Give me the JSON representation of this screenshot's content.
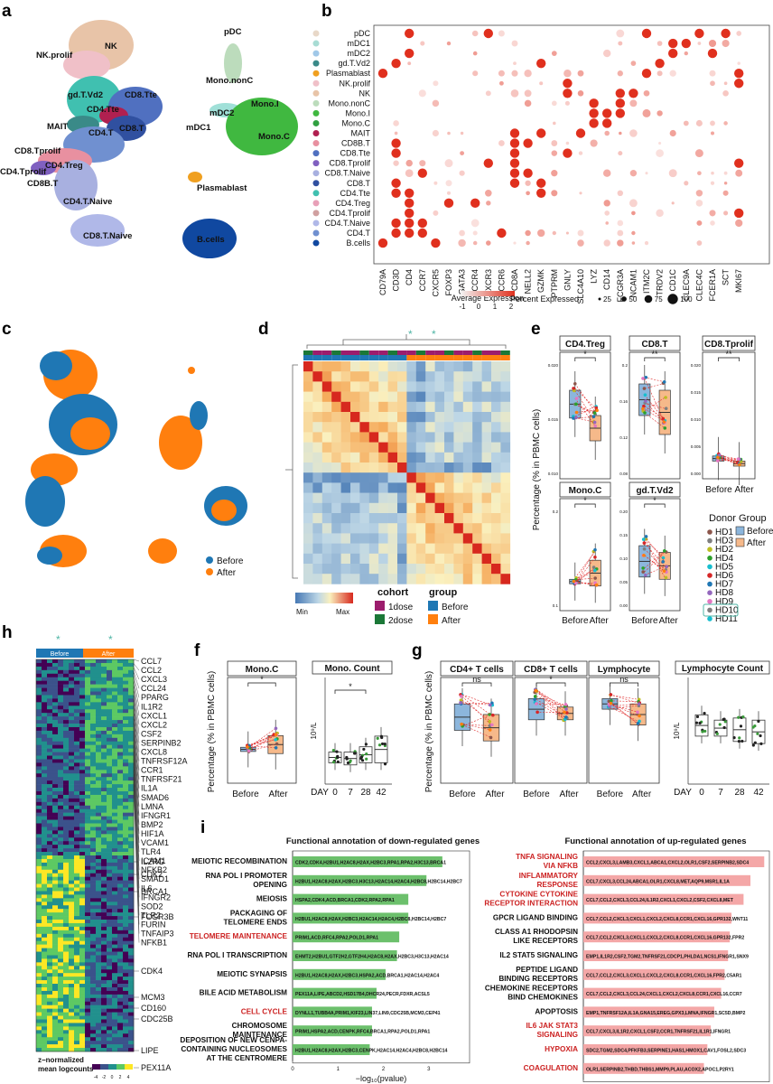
{
  "panels": {
    "a": {
      "label": "a",
      "clusters": [
        "NK",
        "NK.prolif",
        "gd.T.Vd2",
        "CD4.Tte",
        "CD8.Tte",
        "MAIT",
        "CD4.T",
        "CD8.T",
        "CD8.Tprolif",
        "CD4.Tprolif",
        "CD4.Treg",
        "CD8B.T",
        "CD4.T.Naive",
        "CD8.T.Naive",
        "pDC",
        "Mono.nonC",
        "mDC2",
        "mDC1",
        "Mono.I",
        "Mono.C",
        "Plasmablast",
        "B.cells"
      ]
    },
    "b": {
      "label": "b",
      "rows": [
        "pDC",
        "mDC1",
        "mDC2",
        "gd.T.Vd2",
        "Plasmablast",
        "NK.prolif",
        "NK",
        "Mono.nonC",
        "Mono.I",
        "Mono.C",
        "MAIT",
        "CD8B.T",
        "CD8.Tte",
        "CD8.Tprolif",
        "CD8.T.Naive",
        "CD8.T",
        "CD4.Tte",
        "CD4.Treg",
        "CD4.Tprolif",
        "CD4.T.Naive",
        "CD4.T",
        "B.cells"
      ],
      "genes": [
        "CD79A",
        "CD3D",
        "CD4",
        "CCR7",
        "CXCR5",
        "FOXP3",
        "GATA3",
        "CCR4",
        "CXCR3",
        "CCR6",
        "CD8A",
        "NELL2",
        "GZMK",
        "PTPRM",
        "GNLY",
        "SLC4A10",
        "LYZ",
        "CD14",
        "FCGR3A",
        "NCAM1",
        "ITM2C",
        "TRDV2",
        "CD1C",
        "CLEC9A",
        "CLEC4C",
        "FCER1A",
        "SCT",
        "MKI67"
      ],
      "legend_expr_title": "Average Expression",
      "legend_expr_ticks": [
        "-1",
        "0",
        "1",
        "2"
      ],
      "legend_pct_title": "Percent Expressed",
      "legend_pct_ticks": [
        "25",
        "50",
        "75",
        "100"
      ],
      "colors": {
        "low": "#f0f0f0",
        "high": "#e0301e"
      }
    },
    "c": {
      "label": "c",
      "legend": [
        "Before",
        "After"
      ],
      "colors": {
        "before": "#1f77b4",
        "after": "#ff7f0e"
      }
    },
    "d": {
      "label": "d",
      "scale_min": "Min",
      "scale_max": "Max",
      "cohort_title": "cohort",
      "cohort_items": [
        "1dose",
        "2dose"
      ],
      "group_title": "group",
      "group_items": [
        "Before",
        "After"
      ]
    },
    "e": {
      "label": "e",
      "ylabel": "Percentage (% in PBMC cells)",
      "xlabels": [
        "Before",
        "After"
      ],
      "boxes": [
        {
          "title": "CD4.Treg",
          "sig": "*",
          "ticks": [
            "0.020",
            "0.015",
            "0.010"
          ]
        },
        {
          "title": "CD8.T",
          "sig": "**",
          "ticks": [
            "0.2",
            "0.16",
            "0.12",
            "0.08"
          ]
        },
        {
          "title": "CD8.Tprolif",
          "sig": "**",
          "ticks": [
            "0.020",
            "0.015",
            "0.010",
            "0.005",
            "0.000"
          ]
        },
        {
          "title": "Mono.C",
          "sig": "*",
          "ticks": [
            "0.2",
            "0.1"
          ]
        },
        {
          "title": "gd.T.Vd2",
          "sig": "*",
          "ticks": [
            "0.20",
            "0.15",
            "0.10",
            "0.05",
            "0.00"
          ]
        }
      ],
      "donor_title": "Donor",
      "donors": [
        "HD1",
        "HD3",
        "HD2",
        "HD4",
        "HD5",
        "HD6",
        "HD7",
        "HD8",
        "HD9",
        "HD10",
        "HD11"
      ],
      "donor_colors": [
        "#8c564b",
        "#7f7f7f",
        "#bcbd22",
        "#2ca02c",
        "#17becf",
        "#d62728",
        "#1f77b4",
        "#9467bd",
        "#e377c2",
        "#7f7f7f",
        "#17becf"
      ],
      "group_title": "Group",
      "groups": [
        "Before",
        "After"
      ]
    },
    "h": {
      "label": "h",
      "top_labels": [
        "Before",
        "After"
      ],
      "genes_top": [
        "CCL7",
        "CCL2",
        "CXCL3",
        "CCL24",
        "PPARG",
        "IL1R2",
        "CXCL1",
        "CXCL2",
        "CSF2",
        "SERPINB2",
        "CXCL8",
        "TNFRSF12A",
        "CCR1",
        "TNFRSF21",
        "IL1A",
        "SMAD6",
        "LMNA",
        "IFNGR1",
        "BMP2",
        "HIF1A",
        "VCAM1",
        "TLR4",
        "ICAM1",
        "NFKB2",
        "SMAD1",
        "IL6",
        "IFNGR2",
        "SOD2",
        "TLR2",
        "FURIN",
        "TNFAIP3",
        "NFKB1"
      ],
      "genes_bottom": [
        "IL2RG",
        "CDK2",
        "BRCA1",
        "FCGR3B",
        "CDK4",
        "MCM3",
        "CD160",
        "CDC25B",
        "LIPE",
        "PEX11A"
      ],
      "legend_title_1": "z−normalized",
      "legend_title_2": "mean logcounts",
      "legend_ticks": [
        "-4",
        "-2",
        "0",
        "2",
        "4"
      ]
    },
    "f": {
      "label": "f",
      "ylabel": "Percentage (% in PBMC cells)",
      "box_title": "Mono.C",
      "box_sig": "*",
      "box_x": [
        "Before",
        "After"
      ],
      "count_title": "Mono. Count",
      "count_sig": "*",
      "count_ylabel": "10⁹/L",
      "count_x": [
        "DAY",
        "0",
        "7",
        "28",
        "42"
      ]
    },
    "g": {
      "label": "g",
      "ylabel": "Percentage (% in PBMC cells)",
      "boxes": [
        {
          "title": "CD4+ T cells",
          "sig": "ns"
        },
        {
          "title": "CD8+ T cells",
          "sig": "*"
        },
        {
          "title": "Lymphocyte",
          "sig": "ns"
        }
      ],
      "box_x": [
        "Before",
        "After"
      ],
      "count_title": "Lymphocyte Count",
      "count_ylabel": "10⁹/L",
      "count_x": [
        "DAY",
        "0",
        "7",
        "28",
        "42"
      ]
    },
    "i": {
      "label": "i",
      "down_title": "Functional annotation of down-regulated genes",
      "up_title": "Functional annotation of up-regulated genes",
      "xlabel": "−log₁₀(pvalue)",
      "down_ticks": [
        "0",
        "1",
        "2",
        "3"
      ],
      "up_ticks": [
        "0.0",
        "2.5",
        "5.0",
        "7.5",
        "10.0"
      ],
      "down_terms": [
        {
          "lines": [
            "MEIOTIC RECOMBINATION"
          ],
          "genes": "CDK2,CDK4,H2BU1,H2AC8,H2AX,H2BC3,RPA1,RPA2,H3C13,BRCA1",
          "value": 3.3,
          "highlight": false
        },
        {
          "lines": [
            "RNA POL I PROMOTER",
            "OPENING"
          ],
          "genes": "H2BU1,H2AC8,H2AX,H2BC3,H3C13,H2AC14,H2AC4,H2BC8,H2BC14,H2BC7",
          "value": 2.95,
          "highlight": false
        },
        {
          "lines": [
            "MEIOSIS"
          ],
          "genes": "HSPA2,CDK4,ACD,BRCA1,CDK2,RPA2,RPA1",
          "value": 2.55,
          "highlight": false
        },
        {
          "lines": [
            "PACKAGING OF",
            "TELOMERE ENDS"
          ],
          "genes": "H2BU1,H2AC8,H2AX,H2BC3,H2AC14,H2AC4,H2BC8,H2BC14,H2BC7",
          "value": 2.55,
          "highlight": false
        },
        {
          "lines": [
            "TELOMERE MAINTENANCE"
          ],
          "genes": "PRIM1,ACD,RFC4,RPA2,POLD1,RPA1",
          "value": 2.35,
          "highlight": true
        },
        {
          "lines": [
            "RNA POL I TRANSCRIPTION"
          ],
          "genes": "EHMT2,H2BU1,GTF2H2,GTF2H4,H2AC8,H2AX,H2BC3,H3C13,H2AC14",
          "value": 2.3,
          "highlight": false
        },
        {
          "lines": [
            "MEIOTIC SYNAPSIS"
          ],
          "genes": "H2BU1,H2AC8,H2AX,H2BC3,HSPA2,ACD,BRCA1,H2AC14,H2AC4",
          "value": 2.05,
          "highlight": false
        },
        {
          "lines": [
            "BILE ACID METABOLISM"
          ],
          "genes": "PEX11A,LIPE,ABCD2,HSD17B4,DHCR24,PECR,FDXR,ACSL5",
          "value": 1.85,
          "highlight": false
        },
        {
          "lines": [
            "CELL CYCLE"
          ],
          "genes": "DYNLL1,TUBB4A,PRIM1,KIF23,LIN37,LIN9,CDC25B,MCM3,CEP41",
          "value": 1.75,
          "highlight": true
        },
        {
          "lines": [
            "CHROMOSOME",
            "MAINTENANCE"
          ],
          "genes": "PRIM1,HSPA2,ACD,CENPK,RFC4,BRCA1,RPA2,POLD1,RPA1",
          "value": 1.75,
          "highlight": false
        },
        {
          "lines": [
            "DEPOSITION OF NEW CENPA-",
            "CONTAINING NUCLEOSOMES",
            "AT THE CENTROMERE"
          ],
          "genes": "H2BU1,H2AC8,H2AX,H2BC3,CENPK,H2AC14,H2AC4,H2BC8,H2BC14",
          "value": 1.7,
          "highlight": false
        }
      ],
      "up_terms": [
        {
          "lines": [
            "TNFA SIGNALING",
            "VIA NFKB"
          ],
          "genes": "CCL2,CXCL3,LAMB3,CXCL1,ABCA1,CXCL2,OLR1,CSF2,SERPINB2,SDC4",
          "value": 10.5,
          "highlight": true
        },
        {
          "lines": [
            "INFLAMMATORY",
            "RESPONSE"
          ],
          "genes": "CCL7,CXCL3,CCL24,ABCA1,OLR1,CXCL8,MET,AQP9,MSR1,IL1A",
          "value": 9.7,
          "highlight": true
        },
        {
          "lines": [
            "CYTOKINE CYTOKINE",
            "RECEPTOR INTERACTION"
          ],
          "genes": "CCL7,CCL2,CXCL3,CCL24,IL1R2,CXCL1,CXCL2,CSF2,CXCL8,MET",
          "value": 9.3,
          "highlight": true
        },
        {
          "lines": [
            "GPCR LIGAND BINDING"
          ],
          "genes": "CCL7,CCL2,CXCL3,CXCL1,CXCL2,CXCL8,CCR1,CXCL16,GPR132,WNT11",
          "value": 8.6,
          "highlight": false
        },
        {
          "lines": [
            "CLASS A1 RHODOPSIN",
            "LIKE RECEPTORS"
          ],
          "genes": "CCL7,CCL2,CXCL3,CXCL1,CXCL2,CXCL8,CCR1,CXCL16,GPR132,FPR2",
          "value": 8.5,
          "highlight": false
        },
        {
          "lines": [
            "IL2 STAT5 SIGNALING"
          ],
          "genes": "EMP1,IL1R2,CSF2,TGM2,TNFRSF21,CDCP1,PHLDA1,NCS1,IFNGR1,SNX9",
          "value": 8.4,
          "highlight": false
        },
        {
          "lines": [
            "PEPTIDE LIGAND",
            "BINDING RECEPTORS"
          ],
          "genes": "CCL7,CCL2,CXCL3,CXCL1,CXCL2,CXCL8,CCR1,CXCL16,FPR2,C5AR1",
          "value": 8.2,
          "highlight": false
        },
        {
          "lines": [
            "CHEMOKINE RECEPTORS",
            "BIND CHEMOKINES"
          ],
          "genes": "CCL7,CCL2,CXCL3,CCL24,CXCL1,CXCL2,CXCL8,CCR1,CXCL16,CCR7",
          "value": 8.0,
          "highlight": false
        },
        {
          "lines": [
            "APOPTOSIS"
          ],
          "genes": "EMP1,TNFRSF12A,IL1A,GNA15,EREG,GPX3,LMNA,IFNGR1,SC5D,BMP2",
          "value": 7.6,
          "highlight": false
        },
        {
          "lines": [
            "IL6 JAK STAT3",
            "SIGNALING"
          ],
          "genes": "CCL7,CXCL3,IL1R2,CXCL1,CSF2,CCR1,TNFRSF21,IL1R1,IFNGR1",
          "value": 7.4,
          "highlight": true
        },
        {
          "lines": [
            "HYPOXIA"
          ],
          "genes": "SDC2,TGM2,SDC4,PFKFB3,SERPINE1,HAS1,HMOX1,CAV1,FOSL2,SDC3",
          "value": 7.2,
          "highlight": true
        },
        {
          "lines": [
            "COAGULATION"
          ],
          "genes": "OLR1,SERPINB2,THBD,THBS1,MMP9,PLAU,ACOX2,APOC1,P2RY1",
          "value": 7.0,
          "highlight": true
        }
      ],
      "colors": {
        "down": "#6cc06c",
        "up": "#f4a7a7",
        "highlight": "#cc2222"
      }
    }
  }
}
